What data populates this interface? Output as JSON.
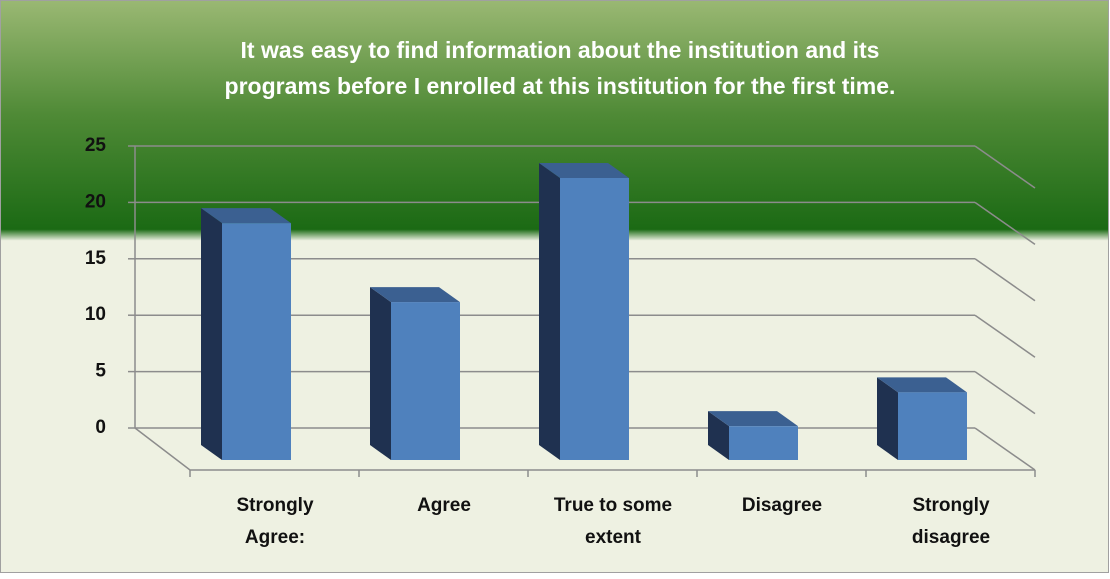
{
  "chart_data": {
    "type": "bar3d",
    "title": "It was easy to find information about the institution and its programs before I enrolled at this institution for the first time.",
    "categories": [
      "Strongly Agree:",
      "Agree",
      "True to some extent",
      "Disagree",
      "Strongly disagree"
    ],
    "values": [
      21,
      14,
      25,
      3,
      6
    ],
    "color": "#4f81bd",
    "ylim": [
      0,
      25
    ],
    "yticks": [
      0,
      5,
      10,
      15,
      20,
      25
    ],
    "grid": true
  }
}
